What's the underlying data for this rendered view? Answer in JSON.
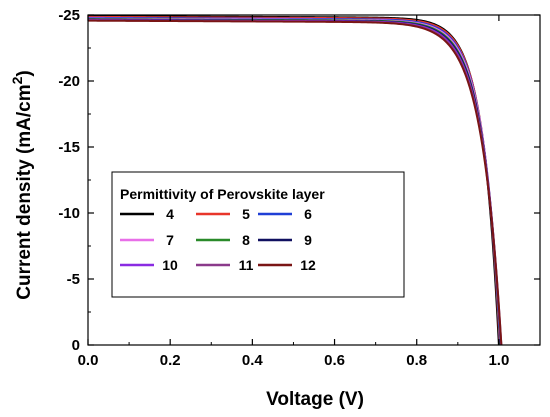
{
  "chart_data": {
    "type": "line",
    "title": "",
    "xlabel": "Voltage (V)",
    "ylabel_main": "Current density (mA/cm",
    "ylabel_sup": "2",
    "ylabel_close": ")",
    "xlim": [
      0.0,
      1.1
    ],
    "ylim": [
      0,
      -25
    ],
    "y_reversed": true,
    "x_ticks": [
      0.0,
      0.2,
      0.4,
      0.6,
      0.8,
      1.0
    ],
    "x_tick_labels": [
      "0.0",
      "0.2",
      "0.4",
      "0.6",
      "0.8",
      "1.0"
    ],
    "y_ticks": [
      -25,
      -20,
      -15,
      -10,
      -5,
      0
    ],
    "y_tick_labels": [
      "-25",
      "-20",
      "-15",
      "-10",
      "-5",
      "0"
    ],
    "grid": false,
    "legend": {
      "title": "Permittivity of Perovskite layer",
      "placement": "center-left",
      "columns": 3
    },
    "jsc": -24.4,
    "series": [
      {
        "name": "4",
        "color": "#000000",
        "voc": 1.0,
        "knee": 0.845,
        "sharpness": 0.04
      },
      {
        "name": "5",
        "color": "#e8352a",
        "voc": 1.002,
        "knee": 0.838,
        "sharpness": 0.041
      },
      {
        "name": "6",
        "color": "#1f3fd6",
        "voc": 1.003,
        "knee": 0.828,
        "sharpness": 0.042
      },
      {
        "name": "7",
        "color": "#e86fe8",
        "voc": 1.004,
        "knee": 0.818,
        "sharpness": 0.043
      },
      {
        "name": "8",
        "color": "#2a8a2a",
        "voc": 1.004,
        "knee": 0.808,
        "sharpness": 0.044
      },
      {
        "name": "9",
        "color": "#101060",
        "voc": 1.005,
        "knee": 0.798,
        "sharpness": 0.045
      },
      {
        "name": "10",
        "color": "#8a2be2",
        "voc": 1.005,
        "knee": 0.788,
        "sharpness": 0.046
      },
      {
        "name": "11",
        "color": "#8b3a8b",
        "voc": 1.006,
        "knee": 0.778,
        "sharpness": 0.047
      },
      {
        "name": "12",
        "color": "#7a1515",
        "voc": 1.006,
        "knee": 0.768,
        "sharpness": 0.048
      }
    ]
  }
}
